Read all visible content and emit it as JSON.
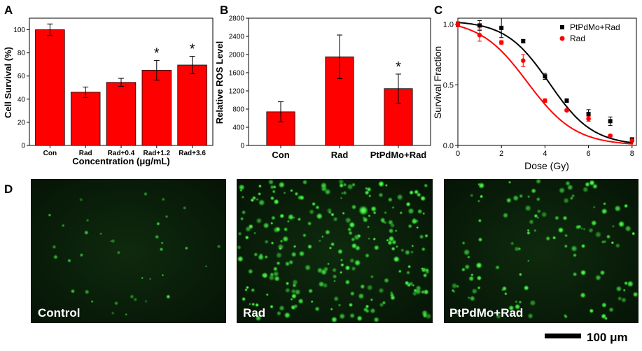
{
  "panels": {
    "a": "A",
    "b": "B",
    "c": "C",
    "d": "D"
  },
  "colors": {
    "bar": "#ff0000",
    "black_series": "#000000",
    "red_series": "#ff0000",
    "micro_bg": "#0a1a0a",
    "cell": "#29d629"
  },
  "chart_data": [
    {
      "type": "bar",
      "panel": "A",
      "categories": [
        "Con",
        "Rad",
        "Rad+0.4",
        "Rad+1.2",
        "Rad+3.6"
      ],
      "values": [
        100,
        46,
        54.5,
        65,
        69.5
      ],
      "errors": [
        5,
        4.5,
        3.5,
        8.5,
        7.5
      ],
      "significance": [
        "",
        "",
        "",
        "*",
        "*"
      ],
      "xlabel": "Concentration (μg/mL)",
      "ylabel": "Cell Survival (%)",
      "ylim": [
        0,
        110
      ],
      "yticks": [
        0,
        20,
        40,
        60,
        80,
        100
      ]
    },
    {
      "type": "bar",
      "panel": "B",
      "categories": [
        "Con",
        "Rad",
        "PtPdMo+Rad"
      ],
      "values": [
        740,
        1950,
        1250
      ],
      "errors": [
        220,
        480,
        320
      ],
      "significance": [
        "",
        "",
        "*"
      ],
      "xlabel": "",
      "ylabel": "Relative ROS Level",
      "ylim": [
        0,
        2800
      ],
      "yticks": [
        0,
        400,
        800,
        1200,
        1600,
        2000,
        2400,
        2800
      ]
    },
    {
      "type": "scatter",
      "panel": "C",
      "xlabel": "Dose (Gy)",
      "ylabel": "Survival Fraction",
      "xlim": [
        0,
        8.2
      ],
      "ylim": [
        0,
        1.05
      ],
      "xticks": [
        0,
        2,
        4,
        6,
        8
      ],
      "yticks": [
        0.0,
        0.5,
        1.0
      ],
      "legend_position": "top-right",
      "series": [
        {
          "name": "PtPdMo+Rad",
          "marker": "square",
          "x": [
            0,
            1,
            2,
            3,
            4,
            5,
            6,
            7,
            8
          ],
          "y": [
            1.0,
            0.99,
            0.97,
            0.86,
            0.57,
            0.37,
            0.26,
            0.2,
            0.05
          ],
          "err": [
            0.02,
            0.04,
            0.08,
            0.015,
            0.025,
            0.015,
            0.035,
            0.035,
            0.01
          ],
          "fit": {
            "model": "boltzmann",
            "top": 1.03,
            "bottom": 0.0,
            "x0": 4.2,
            "dx": 1.0
          }
        },
        {
          "name": "Rad",
          "marker": "circle",
          "x": [
            0,
            1,
            2,
            3,
            4,
            5,
            6,
            7,
            8
          ],
          "y": [
            1.0,
            0.91,
            0.85,
            0.7,
            0.37,
            0.29,
            0.22,
            0.08,
            0.04
          ],
          "err": [
            0.02,
            0.05,
            0.015,
            0.05,
            0.015,
            0.01,
            0.02,
            0.01,
            0.01
          ],
          "fit": {
            "model": "boltzmann",
            "top": 1.04,
            "bottom": 0.0,
            "x0": 3.2,
            "dx": 1.1
          }
        }
      ]
    }
  ],
  "micrographs": [
    {
      "label": "Control",
      "density": "low"
    },
    {
      "label": "Rad",
      "density": "high"
    },
    {
      "label": "PtPdMo+Rad",
      "density": "medium"
    }
  ],
  "scale_bar": {
    "label": "100 μm"
  }
}
